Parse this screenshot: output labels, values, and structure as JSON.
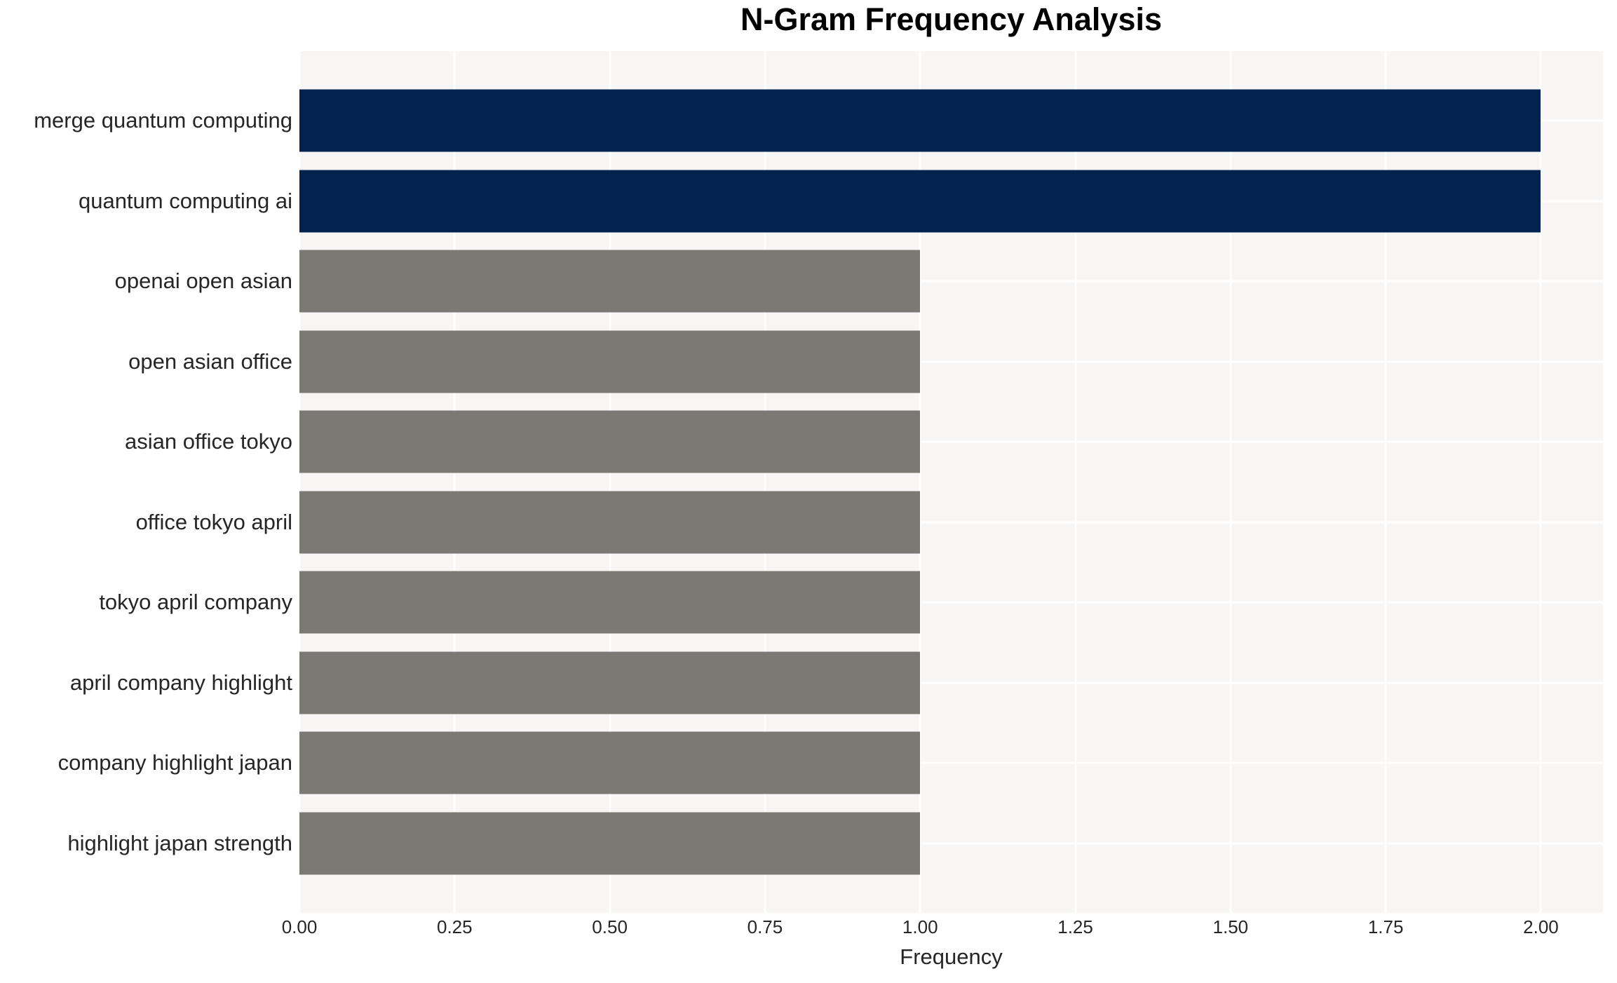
{
  "chart_data": {
    "type": "bar",
    "orientation": "horizontal",
    "title": "N-Gram Frequency Analysis",
    "xlabel": "Frequency",
    "ylabel": "",
    "categories": [
      "merge quantum computing",
      "quantum computing ai",
      "openai open asian",
      "open asian office",
      "asian office tokyo",
      "office tokyo april",
      "tokyo april company",
      "april company highlight",
      "company highlight japan",
      "highlight japan strength"
    ],
    "values": [
      2,
      2,
      1,
      1,
      1,
      1,
      1,
      1,
      1,
      1
    ],
    "bar_colors": [
      "#02234d",
      "#02234d",
      "#7a7974",
      "#7a7974",
      "#7a7974",
      "#7a7974",
      "#7a7974",
      "#7a7974",
      "#7a7974",
      "#7a7974"
    ],
    "xticks": [
      0,
      0.25,
      0.5,
      0.75,
      1,
      1.25,
      1.5,
      1.75,
      2
    ],
    "xtick_labels": [
      "0.00",
      "0.25",
      "0.50",
      "0.75",
      "1.00",
      "1.25",
      "1.50",
      "1.75",
      "2.00"
    ],
    "xlim": [
      0,
      2.1
    ],
    "grid": true,
    "legend": "none",
    "colors": {
      "highlight_bar": "#02234d",
      "default_bar": "#7a7974",
      "plot_background": "#f7f6f5",
      "figure_background": "#ffffff",
      "gridline": "#ffffff",
      "text": "#262626",
      "title_text": "#000000"
    }
  }
}
